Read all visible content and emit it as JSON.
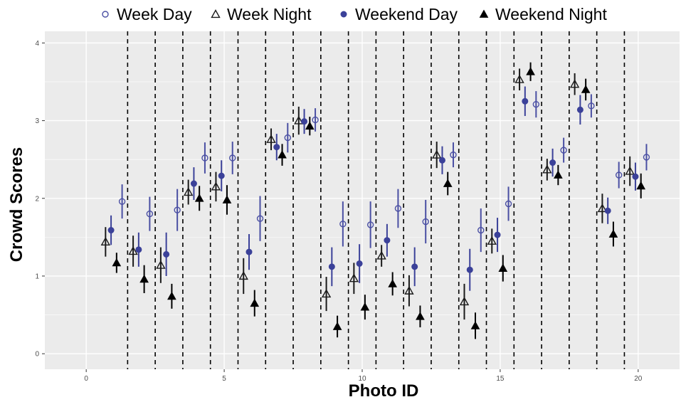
{
  "chart_data": {
    "type": "scatter",
    "xlabel": "Photo ID",
    "ylabel": "Crowd Scores",
    "xlim": [
      -1.5,
      21.5
    ],
    "ylim": [
      -0.2,
      4.15
    ],
    "xticks": [
      0,
      5,
      10,
      15,
      20
    ],
    "yticks": [
      0,
      1,
      2,
      3,
      4
    ],
    "grid": true,
    "legend_position": "top",
    "dashed_separators_at": [
      1.5,
      2.5,
      3.5,
      4.5,
      5.5,
      6.5,
      7.5,
      8.5,
      9.5,
      10.5,
      11.5,
      12.5,
      13.5,
      14.5,
      15.5,
      16.5,
      17.5,
      18.5,
      19.5
    ],
    "photo_ids": [
      1,
      2,
      3,
      4,
      5,
      6,
      7,
      8,
      9,
      10,
      11,
      12,
      13,
      14,
      15,
      16,
      17,
      18,
      19,
      20
    ],
    "series": [
      {
        "name": "Week Day",
        "marker": "open-circle",
        "color": "#4a4fa3",
        "offset": 0.3,
        "values": [
          1.96,
          1.8,
          1.85,
          2.52,
          2.52,
          1.74,
          2.78,
          3.01,
          1.67,
          1.66,
          1.87,
          1.7,
          2.56,
          1.59,
          1.93,
          3.21,
          2.62,
          3.19,
          2.3,
          2.53
        ],
        "err": [
          0.22,
          0.22,
          0.27,
          0.2,
          0.21,
          0.29,
          0.19,
          0.15,
          0.29,
          0.3,
          0.25,
          0.28,
          0.16,
          0.28,
          0.22,
          0.17,
          0.16,
          0.15,
          0.17,
          0.17
        ]
      },
      {
        "name": "Week Night",
        "marker": "open-triangle",
        "color": "#1a1a1a",
        "offset": -0.3,
        "values": [
          1.44,
          1.32,
          1.14,
          2.08,
          2.15,
          1.0,
          2.76,
          3.0,
          0.77,
          0.97,
          1.26,
          0.81,
          2.56,
          0.67,
          1.45,
          3.53,
          2.37,
          3.47,
          1.87,
          2.35
        ],
        "err": [
          0.19,
          0.2,
          0.23,
          0.16,
          0.19,
          0.23,
          0.14,
          0.18,
          0.22,
          0.2,
          0.14,
          0.2,
          0.17,
          0.23,
          0.16,
          0.14,
          0.14,
          0.14,
          0.19,
          0.19
        ]
      },
      {
        "name": "Weekend Day",
        "marker": "filled-circle",
        "color": "#3b4199",
        "offset": -0.1,
        "values": [
          1.59,
          1.34,
          1.28,
          2.19,
          2.29,
          1.31,
          2.66,
          2.99,
          1.12,
          1.16,
          1.46,
          1.12,
          2.49,
          1.08,
          1.53,
          3.25,
          2.46,
          3.14,
          1.84,
          2.28
        ],
        "err": [
          0.19,
          0.22,
          0.28,
          0.21,
          0.2,
          0.23,
          0.17,
          0.16,
          0.25,
          0.25,
          0.21,
          0.25,
          0.18,
          0.27,
          0.22,
          0.19,
          0.18,
          0.19,
          0.17,
          0.18
        ]
      },
      {
        "name": "Weekend Night",
        "marker": "filled-triangle",
        "color": "#000000",
        "offset": 0.1,
        "values": [
          1.17,
          0.96,
          0.74,
          2.0,
          1.98,
          0.65,
          2.56,
          2.93,
          0.35,
          0.6,
          0.9,
          0.48,
          2.19,
          0.36,
          1.1,
          3.63,
          2.3,
          3.4,
          1.54,
          2.16
        ],
        "err": [
          0.13,
          0.18,
          0.16,
          0.16,
          0.19,
          0.17,
          0.14,
          0.12,
          0.14,
          0.16,
          0.15,
          0.14,
          0.15,
          0.17,
          0.17,
          0.12,
          0.13,
          0.14,
          0.16,
          0.16
        ]
      }
    ]
  }
}
